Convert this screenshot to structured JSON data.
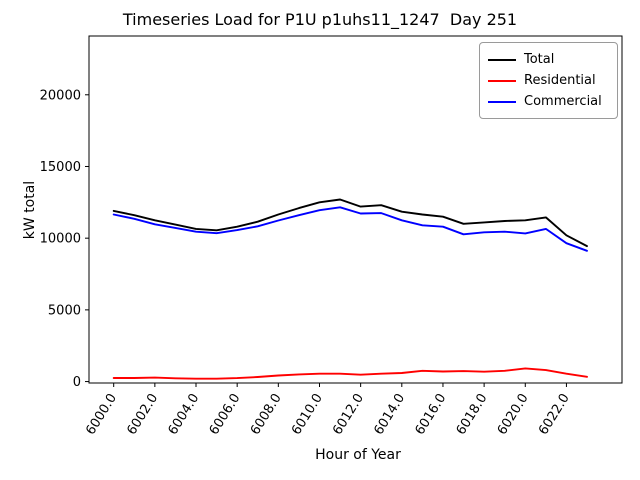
{
  "figure": {
    "title": "Timeseries Load for P1U p1uhs11_1247  Day 251"
  },
  "chart_data": {
    "type": "line",
    "title": "Timeseries Load for P1U p1uhs11_1247  Day 251",
    "xlabel": "Hour of Year",
    "ylabel": "kW total",
    "x": [
      6000,
      6001,
      6002,
      6003,
      6004,
      6005,
      6006,
      6007,
      6008,
      6009,
      6010,
      6011,
      6012,
      6013,
      6014,
      6015,
      6016,
      6017,
      6018,
      6019,
      6020,
      6021,
      6022,
      6023
    ],
    "series": [
      {
        "name": "Total",
        "color": "#000000",
        "values": [
          11900,
          11600,
          11250,
          10950,
          10650,
          10550,
          10800,
          11150,
          11650,
          12100,
          12500,
          12700,
          12200,
          12300,
          11850,
          11650,
          11500,
          11000,
          11100,
          11200,
          11250,
          11450,
          10200,
          9450
        ]
      },
      {
        "name": "Residential",
        "color": "#ff0000",
        "values": [
          250,
          250,
          280,
          230,
          200,
          200,
          240,
          320,
          420,
          500,
          550,
          550,
          480,
          550,
          600,
          750,
          700,
          730,
          690,
          750,
          920,
          800,
          550,
          330
        ]
      },
      {
        "name": "Commercial",
        "color": "#0000ff",
        "values": [
          11650,
          11350,
          10970,
          10720,
          10450,
          10350,
          10560,
          10830,
          11230,
          11600,
          11950,
          12150,
          11720,
          11750,
          11250,
          10900,
          10800,
          10270,
          10410,
          10450,
          10330,
          10650,
          9650,
          9120
        ]
      }
    ],
    "xlim": [
      5998.8,
      6024.7
    ],
    "ylim": [
      -100,
      24100
    ],
    "xticks": [
      6000,
      6002,
      6004,
      6006,
      6008,
      6010,
      6012,
      6014,
      6016,
      6018,
      6020,
      6022
    ],
    "xtick_labels": [
      "6000.0",
      "6002.0",
      "6004.0",
      "6006.0",
      "6008.0",
      "6010.0",
      "6012.0",
      "6014.0",
      "6016.0",
      "6018.0",
      "6020.0",
      "6022.0"
    ],
    "yticks": [
      0,
      5000,
      10000,
      15000,
      20000
    ],
    "ytick_labels": [
      "0",
      "5000",
      "10000",
      "15000",
      "20000"
    ],
    "grid": false,
    "legend_position": "upper right",
    "legend_entries": [
      "Total",
      "Residential",
      "Commercial"
    ]
  }
}
